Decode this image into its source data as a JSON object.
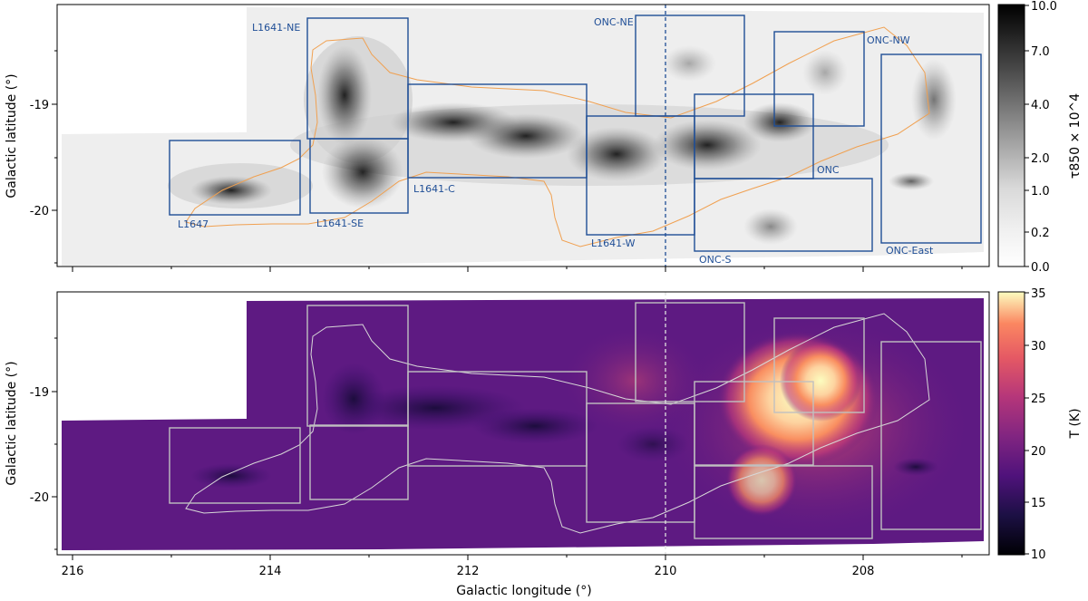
{
  "figure": {
    "xlabel": "Galactic longitude (°)",
    "x_ticks": [
      "216",
      "214",
      "212",
      "210",
      "208"
    ],
    "panels": [
      {
        "id": "top",
        "ylabel": "Galactic latitude (°)",
        "y_ticks": [
          "-19",
          "-20"
        ],
        "colorbar": {
          "label": "τ850 × 10^4",
          "ticks": [
            "10.0",
            "7.0",
            "4.0",
            "2.0",
            "1.0",
            "0.2",
            "0.0"
          ],
          "colormap": "greys",
          "scale": "nonlinear (asinh-like)"
        },
        "region_box_color": "#1f4e96",
        "footprint_color": "#f0a050",
        "dashed_line_color": "#1f4e96",
        "region_labels": [
          "L1641-NE",
          "ONC-NE",
          "ONC-NW",
          "L1641-C",
          "ONC",
          "L1647",
          "L1641-SE",
          "L1641-W",
          "ONC-S",
          "ONC-East"
        ]
      },
      {
        "id": "bottom",
        "ylabel": "Galactic latitude (°)",
        "y_ticks": [
          "-19",
          "-20"
        ],
        "colorbar": {
          "label": "T (K)",
          "ticks": [
            "35",
            "30",
            "25",
            "20",
            "15",
            "10"
          ],
          "colormap": "magma",
          "range": [
            10,
            35
          ]
        },
        "region_box_color": "#c0c0c0",
        "footprint_color": "#d8d8d8",
        "dashed_line_color": "#e0e0e0"
      }
    ],
    "dashed_line_longitude": 210
  }
}
